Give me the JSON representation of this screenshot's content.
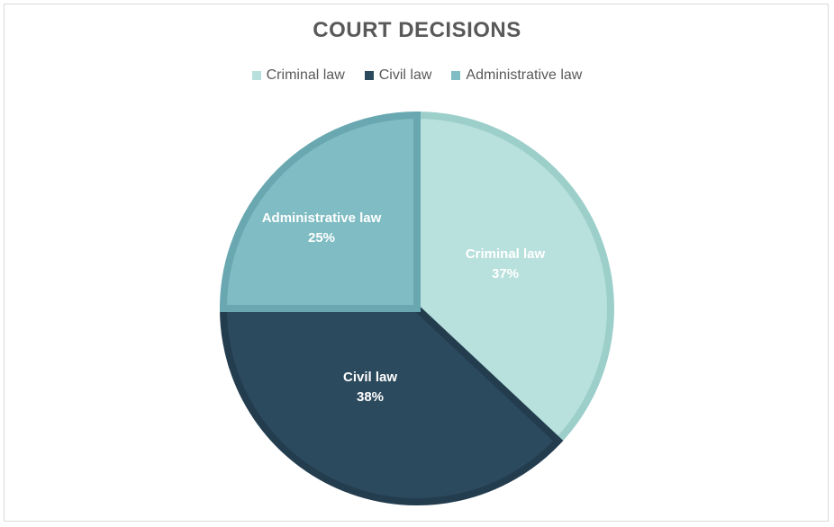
{
  "chart_data": {
    "type": "pie",
    "title": "COURT DECISIONS",
    "legend_position": "top",
    "slices": [
      {
        "name": "Criminal law",
        "value": 37,
        "label": "37%",
        "color": "#b8e0dc",
        "edge": "#9ccfca",
        "label_color": "#ffffff"
      },
      {
        "name": "Civil law",
        "value": 38,
        "label": "38%",
        "color": "#2c4a5e",
        "edge": "#233d4f",
        "label_color": "#ffffff"
      },
      {
        "name": "Administrative law",
        "value": 25,
        "label": "25%",
        "color": "#7fbcc3",
        "edge": "#69a8b0",
        "label_color": "#ffffff"
      }
    ]
  }
}
